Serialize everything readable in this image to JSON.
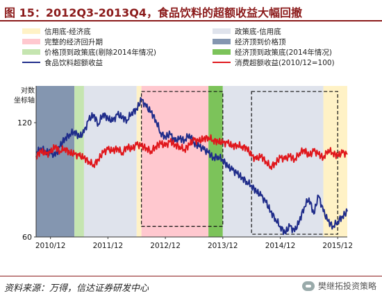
{
  "title": "图 15：2012Q3-2013Q4，食品饮料的超额收益大幅回撤",
  "source": "资料来源：万得，信达证券研发中心",
  "watermark": "樊继拓投资策略",
  "chart_data": {
    "type": "line",
    "x_range": [
      "2010-09",
      "2016-02"
    ],
    "x_tick_labels": [
      "2010/12",
      "2011/12",
      "2012/12",
      "2013/12",
      "2014/12",
      "2015/12"
    ],
    "y_tick_labels": [
      "60",
      "120"
    ],
    "ylim": [
      60,
      150
    ],
    "y_unit_label": "对数坐标轴",
    "y_scale": "log",
    "legend": [
      {
        "label": "信用底-经济底",
        "kind": "band",
        "color": "#fff2c6"
      },
      {
        "label": "政策底-信用底",
        "kind": "band",
        "color": "#dfe3ec"
      },
      {
        "label": "完整的经济回升期",
        "kind": "band",
        "color": "#ffc8cf"
      },
      {
        "label": "经济顶到价格顶",
        "kind": "band",
        "color": "#8496b0"
      },
      {
        "label": "价格顶到政策底(剔除2014年情况)",
        "kind": "band",
        "color": "#c5e5b0"
      },
      {
        "label": "经济顶到政策底(2014年情况)",
        "kind": "band",
        "color": "#7cc35a"
      },
      {
        "label": "食品饮料超额收益",
        "kind": "line",
        "color": "#1f2c8a"
      },
      {
        "label": "消费超额收益(2010/12=100)",
        "kind": "line",
        "color": "#e0171c"
      }
    ],
    "bands": [
      {
        "start": "2010-09",
        "end": "2011-05",
        "color": "#8496b0"
      },
      {
        "start": "2011-05",
        "end": "2011-07",
        "color": "#c5e5b0"
      },
      {
        "start": "2011-07",
        "end": "2012-06",
        "color": "#dfe3ec"
      },
      {
        "start": "2012-06",
        "end": "2012-07",
        "color": "#fff2c6"
      },
      {
        "start": "2012-07",
        "end": "2013-09",
        "color": "#ffc8cf"
      },
      {
        "start": "2013-09",
        "end": "2013-12",
        "color": "#7cc35a"
      },
      {
        "start": "2013-12",
        "end": "2015-09",
        "color": "#dfe3ec"
      },
      {
        "start": "2015-09",
        "end": "2016-02",
        "color": "#fff2c6"
      }
    ],
    "dashed_boxes": [
      {
        "start": "2012-07",
        "end": "2013-12",
        "y_top": 145,
        "y_bottom": 64
      },
      {
        "start": "2014-06",
        "end": "2015-12",
        "y_top": 145,
        "y_bottom": 61
      }
    ],
    "series": [
      {
        "name": "食品饮料超额收益",
        "color": "#1f2c8a",
        "points": [
          [
            "2010-09",
            100
          ],
          [
            "2010-10",
            103
          ],
          [
            "2010-11",
            101
          ],
          [
            "2010-12",
            100
          ],
          [
            "2011-01",
            98
          ],
          [
            "2011-02",
            104
          ],
          [
            "2011-03",
            109
          ],
          [
            "2011-04",
            112
          ],
          [
            "2011-05",
            114
          ],
          [
            "2011-06",
            110
          ],
          [
            "2011-07",
            113
          ],
          [
            "2011-08",
            122
          ],
          [
            "2011-09",
            126
          ],
          [
            "2011-10",
            119
          ],
          [
            "2011-11",
            127
          ],
          [
            "2011-12",
            123
          ],
          [
            "2012-01",
            121
          ],
          [
            "2012-02",
            126
          ],
          [
            "2012-03",
            124
          ],
          [
            "2012-04",
            122
          ],
          [
            "2012-05",
            128
          ],
          [
            "2012-06",
            130
          ],
          [
            "2012-07",
            138
          ],
          [
            "2012-08",
            132
          ],
          [
            "2012-09",
            128
          ],
          [
            "2012-10",
            122
          ],
          [
            "2012-11",
            113
          ],
          [
            "2012-12",
            110
          ],
          [
            "2013-01",
            112
          ],
          [
            "2013-02",
            107
          ],
          [
            "2013-03",
            109
          ],
          [
            "2013-04",
            108
          ],
          [
            "2013-05",
            112
          ],
          [
            "2013-06",
            106
          ],
          [
            "2013-07",
            104
          ],
          [
            "2013-08",
            102
          ],
          [
            "2013-09",
            100
          ],
          [
            "2013-10",
            97
          ],
          [
            "2013-11",
            98
          ],
          [
            "2013-12",
            96
          ],
          [
            "2014-01",
            92
          ],
          [
            "2014-02",
            90
          ],
          [
            "2014-03",
            88
          ],
          [
            "2014-04",
            86
          ],
          [
            "2014-05",
            84
          ],
          [
            "2014-06",
            82
          ],
          [
            "2014-07",
            79
          ],
          [
            "2014-08",
            77
          ],
          [
            "2014-09",
            74
          ],
          [
            "2014-10",
            70
          ],
          [
            "2014-11",
            67
          ],
          [
            "2014-12",
            64
          ],
          [
            "2015-01",
            61.5
          ],
          [
            "2015-02",
            64
          ],
          [
            "2015-03",
            62
          ],
          [
            "2015-04",
            66
          ],
          [
            "2015-05",
            72
          ],
          [
            "2015-06",
            76
          ],
          [
            "2015-07",
            69
          ],
          [
            "2015-08",
            77
          ],
          [
            "2015-09",
            70
          ],
          [
            "2015-10",
            66
          ],
          [
            "2015-11",
            64
          ],
          [
            "2015-12",
            66
          ],
          [
            "2016-01",
            68
          ],
          [
            "2016-02",
            70
          ]
        ]
      },
      {
        "name": "消费超额收益(2010/12=100)",
        "color": "#e0171c",
        "points": [
          [
            "2010-09",
            98
          ],
          [
            "2010-10",
            101
          ],
          [
            "2010-11",
            99
          ],
          [
            "2010-12",
            100
          ],
          [
            "2011-01",
            104
          ],
          [
            "2011-02",
            101
          ],
          [
            "2011-03",
            103
          ],
          [
            "2011-04",
            100
          ],
          [
            "2011-05",
            99
          ],
          [
            "2011-06",
            98
          ],
          [
            "2011-07",
            97
          ],
          [
            "2011-08",
            95
          ],
          [
            "2011-09",
            93
          ],
          [
            "2011-10",
            96
          ],
          [
            "2011-11",
            100
          ],
          [
            "2011-12",
            102
          ],
          [
            "2012-01",
            101
          ],
          [
            "2012-02",
            103
          ],
          [
            "2012-03",
            100
          ],
          [
            "2012-04",
            104
          ],
          [
            "2012-05",
            102
          ],
          [
            "2012-06",
            105
          ],
          [
            "2012-07",
            104
          ],
          [
            "2012-08",
            103
          ],
          [
            "2012-09",
            101
          ],
          [
            "2012-10",
            104
          ],
          [
            "2012-11",
            106
          ],
          [
            "2012-12",
            104
          ],
          [
            "2013-01",
            107
          ],
          [
            "2013-02",
            105
          ],
          [
            "2013-03",
            104
          ],
          [
            "2013-04",
            102
          ],
          [
            "2013-05",
            105
          ],
          [
            "2013-06",
            108
          ],
          [
            "2013-07",
            107
          ],
          [
            "2013-08",
            109
          ],
          [
            "2013-09",
            110
          ],
          [
            "2013-10",
            108
          ],
          [
            "2013-11",
            107
          ],
          [
            "2013-12",
            106
          ],
          [
            "2014-01",
            106
          ],
          [
            "2014-02",
            104
          ],
          [
            "2014-03",
            105
          ],
          [
            "2014-04",
            104
          ],
          [
            "2014-05",
            103
          ],
          [
            "2014-06",
            98
          ],
          [
            "2014-07",
            96
          ],
          [
            "2014-08",
            98
          ],
          [
            "2014-09",
            95
          ],
          [
            "2014-10",
            92
          ],
          [
            "2014-11",
            94
          ],
          [
            "2014-12",
            97
          ],
          [
            "2015-01",
            96
          ],
          [
            "2015-02",
            98
          ],
          [
            "2015-03",
            96
          ],
          [
            "2015-04",
            100
          ],
          [
            "2015-05",
            102
          ],
          [
            "2015-06",
            98
          ],
          [
            "2015-07",
            101
          ],
          [
            "2015-08",
            99
          ],
          [
            "2015-09",
            97
          ],
          [
            "2015-10",
            102
          ],
          [
            "2015-11",
            100
          ],
          [
            "2015-12",
            98
          ],
          [
            "2016-01",
            100
          ],
          [
            "2016-02",
            99
          ]
        ]
      }
    ]
  }
}
